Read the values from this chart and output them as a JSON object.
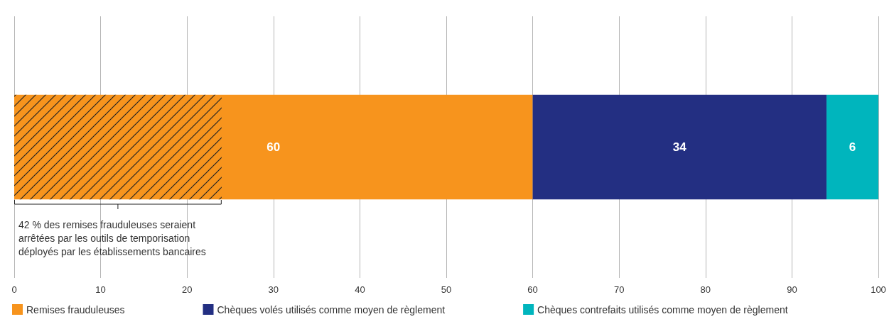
{
  "chart_data": {
    "type": "bar",
    "orientation": "horizontal",
    "stacked": true,
    "categories": [
      null
    ],
    "series": [
      {
        "name": "Remises frauduleuses",
        "color": "#f7941d",
        "values": [
          60
        ]
      },
      {
        "name": "Chèques volés utilisés comme moyen de règlement",
        "color": "#232f82",
        "values": [
          34
        ]
      },
      {
        "name": "Chèques contrefaits utilisés comme moyen de règlement",
        "color": "#00b5bd",
        "values": [
          6
        ]
      }
    ],
    "xlim": [
      0,
      100
    ],
    "xticks": [
      0,
      10,
      20,
      30,
      40,
      50,
      60,
      70,
      80,
      90,
      100
    ],
    "bands": [
      {
        "axis": "x",
        "from": 0,
        "to": 24,
        "label": "42 % des remises frauduleuses seraient arrêtées par les outils de temporisation déployés par les établissements bancaires"
      }
    ],
    "data_labels": true,
    "grid": "x",
    "legend": "bottom left"
  }
}
